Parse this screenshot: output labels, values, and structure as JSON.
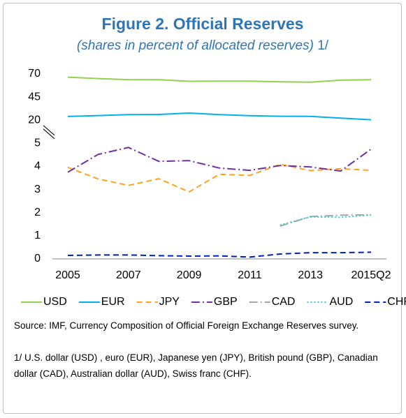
{
  "chart_data": {
    "type": "line",
    "title": "Figure 2. Official Reserves",
    "subtitle": "(shares in percent of allocated reserves)",
    "subtitle_note": "1/",
    "categories": [
      "2005",
      null,
      "2007",
      null,
      "2009",
      null,
      "2011",
      null,
      "2013",
      null,
      "2015Q2"
    ],
    "series": [
      {
        "name": "USD",
        "color": "#92d050",
        "dash": "solid",
        "values": [
          66.5,
          65.0,
          63.9,
          63.8,
          62.1,
          62.2,
          62.3,
          61.5,
          61.2,
          63.3,
          63.8
        ]
      },
      {
        "name": "EUR",
        "color": "#00b0f0",
        "dash": "solid",
        "values": [
          24.0,
          25.0,
          26.1,
          26.2,
          27.7,
          26.0,
          24.9,
          24.3,
          24.2,
          22.2,
          20.5
        ]
      },
      {
        "name": "JPY",
        "color": "#ffa21f",
        "dash": "dash",
        "values": [
          3.96,
          3.46,
          3.18,
          3.47,
          2.9,
          3.66,
          3.61,
          4.09,
          3.82,
          3.9,
          3.83
        ]
      },
      {
        "name": "GBP",
        "color": "#7030a0",
        "dash": "dashdot",
        "values": [
          3.75,
          4.52,
          4.82,
          4.22,
          4.25,
          3.93,
          3.83,
          4.04,
          3.98,
          3.8,
          4.75
        ]
      },
      {
        "name": "CAD",
        "color": "#a6a6a6",
        "dash": "dashdot",
        "values": [
          null,
          null,
          null,
          null,
          null,
          null,
          null,
          1.42,
          1.83,
          1.89,
          1.91
        ]
      },
      {
        "name": "AUD",
        "color": "#33cccc",
        "dash": "dot",
        "values": [
          null,
          null,
          null,
          null,
          null,
          null,
          null,
          1.46,
          1.82,
          1.8,
          1.9
        ]
      },
      {
        "name": "CHF",
        "color": "#0020c0",
        "dash": "dash",
        "values": [
          0.15,
          0.17,
          0.17,
          0.14,
          0.12,
          0.13,
          0.08,
          0.21,
          0.27,
          0.27,
          0.29
        ]
      }
    ],
    "ylim": [
      0,
      70
    ],
    "yticks": [
      0,
      1,
      2,
      3,
      4,
      5,
      20,
      45,
      70
    ],
    "axis_break": true,
    "legend": "bottom",
    "source": "Source: IMF, Currency Composition of Official Foreign Exchange Reserves survey.",
    "note": "1/  U.S. dollar (USD) , euro (EUR), Japanese yen (JPY), British pound (GBP), Canadian dollar (CAD), Australian dollar (AUD), Swiss franc (CHF)."
  }
}
